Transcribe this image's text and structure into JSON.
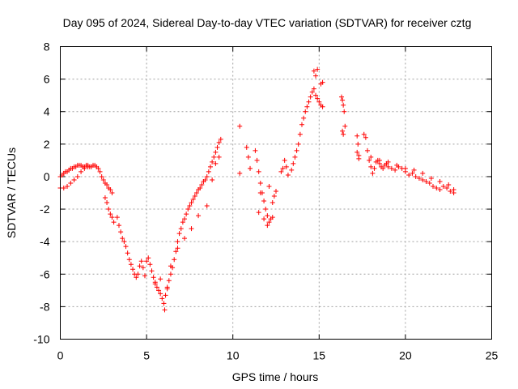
{
  "chart_data": {
    "type": "scatter",
    "title": "Day 095 of 2024, Sidereal Day-to-day VTEC variation (SDTVAR) for receiver cztg",
    "xlabel": "GPS time / hours",
    "ylabel": "SDTVAR / TECUs",
    "xlim": [
      0,
      25
    ],
    "ylim": [
      -10,
      8
    ],
    "grid": true,
    "marker": "plus",
    "x_ticks": [
      0,
      5,
      10,
      15,
      20,
      25
    ],
    "y_ticks": [
      -10,
      -8,
      -6,
      -4,
      -2,
      0,
      2,
      4,
      6,
      8
    ],
    "x_tick_labels": [
      "0",
      "5",
      "10",
      "15",
      "20",
      "25"
    ],
    "y_tick_labels": [
      "-10",
      "-8",
      "-6",
      "-4",
      "-2",
      "0",
      "2",
      "4",
      "6",
      "8"
    ],
    "series": [
      {
        "name": "SDTVAR",
        "color": "#ff0000",
        "x": [
          0.0,
          0.1,
          0.2,
          0.3,
          0.4,
          0.5,
          0.6,
          0.7,
          0.8,
          0.9,
          1.0,
          1.1,
          1.2,
          1.3,
          1.4,
          1.5,
          1.6,
          1.7,
          1.8,
          1.9,
          2.0,
          2.1,
          2.2,
          2.3,
          2.4,
          2.5,
          2.6,
          2.7,
          2.8,
          2.9,
          3.0,
          0.0,
          0.2,
          0.4,
          0.6,
          0.8,
          1.0,
          1.2,
          1.4,
          1.6,
          2.6,
          2.7,
          2.8,
          2.9,
          3.0,
          3.1,
          3.3,
          3.4,
          3.5,
          3.6,
          3.7,
          3.8,
          3.9,
          4.0,
          4.1,
          4.2,
          4.3,
          4.4,
          4.5,
          4.6,
          4.7,
          4.8,
          4.9,
          5.0,
          5.1,
          5.2,
          5.3,
          5.4,
          5.5,
          5.6,
          5.7,
          5.8,
          5.9,
          6.0,
          6.05,
          6.1,
          6.2,
          6.3,
          6.4,
          6.5,
          6.6,
          6.7,
          6.8,
          6.9,
          7.0,
          7.1,
          7.2,
          7.3,
          7.4,
          7.5,
          7.6,
          7.7,
          7.8,
          7.9,
          8.0,
          8.1,
          8.2,
          8.3,
          8.4,
          8.5,
          8.6,
          8.7,
          8.8,
          8.9,
          9.0,
          9.1,
          9.2,
          9.3,
          5.5,
          5.8,
          6.2,
          6.4,
          6.8,
          7.2,
          7.6,
          8.0,
          8.5,
          8.8,
          9.0,
          9.2,
          10.4,
          10.4,
          10.8,
          10.9,
          11.0,
          11.3,
          11.4,
          11.5,
          11.6,
          11.7,
          11.8,
          11.9,
          12.0,
          12.1,
          12.2,
          12.3,
          12.4,
          12.5,
          11.5,
          11.8,
          12.0,
          12.3,
          11.6,
          12.1,
          12.8,
          12.9,
          13.0,
          13.1,
          13.2,
          13.4,
          13.5,
          13.6,
          13.7,
          13.8,
          13.9,
          14.0,
          14.1,
          14.2,
          14.3,
          14.4,
          14.5,
          14.6,
          14.7,
          14.8,
          14.9,
          15.0,
          15.1,
          15.2,
          14.7,
          14.8,
          14.9,
          15.1,
          15.2,
          16.3,
          16.35,
          16.4,
          16.45,
          16.35,
          16.4,
          16.5,
          17.2,
          17.25,
          17.3,
          17.2,
          17.3,
          17.6,
          17.7,
          17.8,
          17.9,
          18.0,
          18.1,
          18.2,
          18.3,
          18.4,
          18.5,
          18.6,
          18.7,
          18.8,
          18.9,
          19.0,
          19.2,
          19.4,
          19.6,
          19.8,
          20.0,
          20.2,
          20.4,
          20.6,
          20.8,
          21.0,
          21.2,
          21.4,
          21.6,
          21.8,
          22.0,
          22.2,
          22.4,
          22.6,
          22.8,
          18.0,
          18.5,
          19.0,
          19.5,
          20.0,
          20.5,
          21.0,
          21.5,
          22.0,
          22.5,
          22.8
        ],
        "y": [
          0.0,
          0.1,
          0.2,
          0.3,
          0.3,
          0.4,
          0.5,
          0.5,
          0.6,
          0.6,
          0.7,
          0.7,
          0.7,
          0.6,
          0.6,
          0.7,
          0.7,
          0.6,
          0.6,
          0.7,
          0.7,
          0.6,
          0.5,
          0.3,
          0.0,
          -0.2,
          -0.4,
          -0.5,
          -0.7,
          -0.8,
          -1.0,
          -0.7,
          -0.7,
          -0.6,
          -0.4,
          -0.2,
          0.0,
          0.3,
          0.5,
          0.6,
          -1.3,
          -1.6,
          -2.0,
          -2.3,
          -2.5,
          -2.8,
          -2.5,
          -3.0,
          -3.4,
          -3.8,
          -4.0,
          -4.3,
          -4.7,
          -5.1,
          -5.4,
          -5.7,
          -6.0,
          -6.2,
          -6.0,
          -5.5,
          -5.2,
          -5.6,
          -6.1,
          -5.2,
          -5.0,
          -5.4,
          -5.8,
          -6.2,
          -6.5,
          -6.8,
          -7.0,
          -7.2,
          -7.5,
          -7.8,
          -8.2,
          -7.3,
          -6.8,
          -6.4,
          -6.0,
          -5.6,
          -5.1,
          -4.6,
          -4.0,
          -3.5,
          -3.2,
          -2.8,
          -2.6,
          -2.3,
          -2.0,
          -1.8,
          -1.6,
          -1.4,
          -1.2,
          -1.0,
          -0.8,
          -0.7,
          -0.5,
          -0.3,
          -0.2,
          0.0,
          0.3,
          0.6,
          0.9,
          1.2,
          1.5,
          1.8,
          2.1,
          2.3,
          -6.6,
          -6.3,
          -6.9,
          -5.5,
          -4.4,
          -3.8,
          -3.2,
          -2.4,
          -1.8,
          -0.2,
          0.8,
          1.2,
          0.2,
          3.1,
          1.8,
          1.2,
          0.5,
          1.6,
          1.0,
          0.3,
          -0.4,
          -1.0,
          -1.5,
          -2.0,
          -2.4,
          -2.8,
          -2.6,
          -1.6,
          -1.2,
          -0.9,
          -2.2,
          -2.6,
          -3.0,
          -2.5,
          -1.0,
          -0.6,
          0.3,
          0.5,
          1.0,
          0.6,
          0.1,
          0.4,
          0.8,
          1.2,
          1.6,
          2.0,
          2.6,
          3.2,
          3.6,
          4.0,
          4.3,
          4.6,
          4.9,
          5.2,
          5.4,
          5.0,
          4.8,
          4.6,
          4.4,
          4.3,
          6.5,
          6.2,
          6.6,
          5.7,
          5.8,
          4.9,
          4.7,
          4.4,
          4.0,
          2.8,
          2.6,
          3.1,
          2.5,
          2.0,
          1.3,
          1.5,
          1.1,
          2.6,
          2.4,
          1.6,
          1.0,
          0.6,
          0.2,
          0.5,
          0.9,
          1.0,
          0.8,
          0.6,
          0.5,
          0.7,
          0.8,
          0.6,
          0.5,
          0.4,
          0.6,
          0.5,
          0.3,
          0.1,
          0.2,
          0.0,
          -0.1,
          -0.2,
          -0.3,
          -0.4,
          -0.6,
          -0.7,
          -0.8,
          -0.6,
          -0.7,
          -0.9,
          -1.0,
          1.2,
          1.0,
          0.9,
          0.7,
          0.5,
          0.4,
          0.2,
          -0.1,
          -0.3,
          -0.5,
          -0.8
        ]
      }
    ]
  }
}
